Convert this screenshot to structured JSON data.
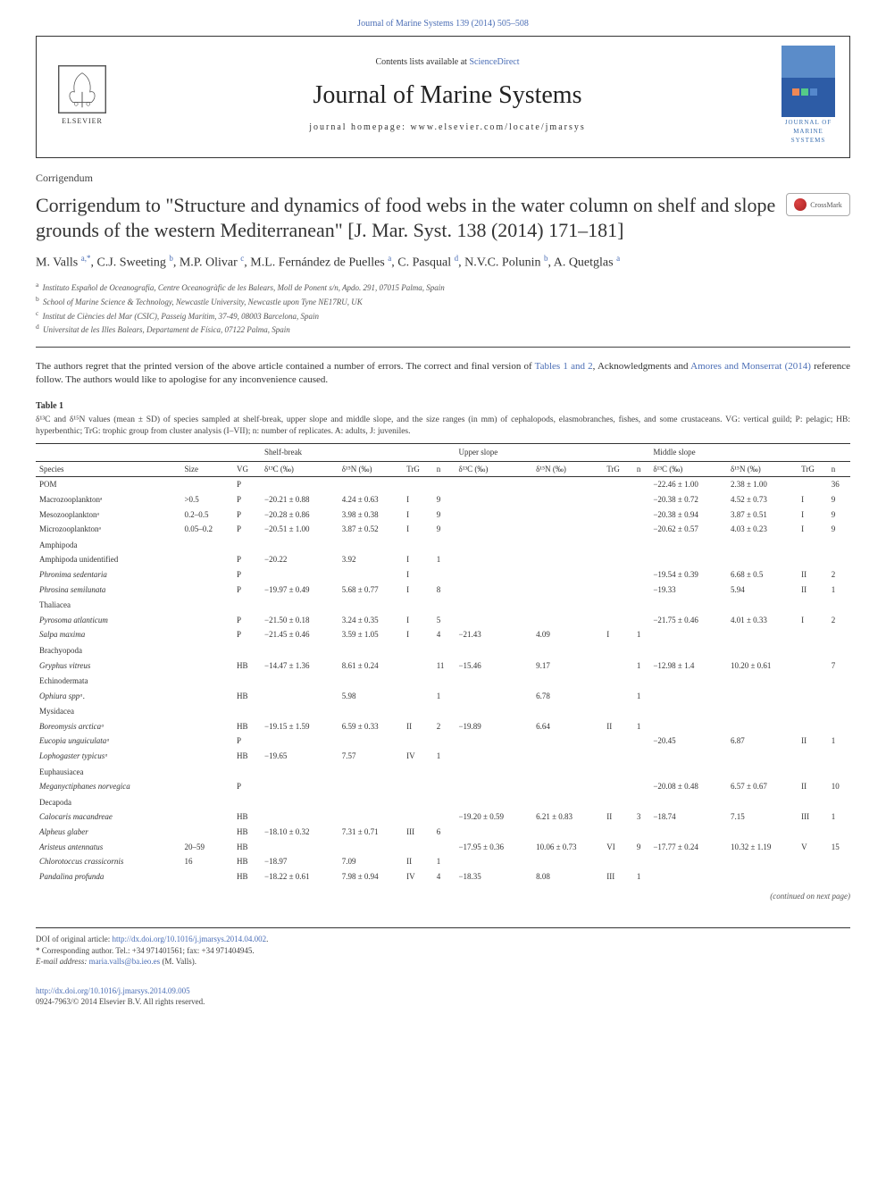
{
  "journal_ref": "Journal of Marine Systems 139 (2014) 505–508",
  "header": {
    "contents_prefix": "Contents lists available at ",
    "contents_link": "ScienceDirect",
    "journal_title": "Journal of Marine Systems",
    "homepage_prefix": "journal homepage: ",
    "homepage": "www.elsevier.com/locate/jmarsys",
    "elsevier_label": "ELSEVIER",
    "cover_line1": "JOURNAL OF",
    "cover_line2": "MARINE",
    "cover_line3": "SYSTEMS"
  },
  "article_type": "Corrigendum",
  "title": "Corrigendum to \"Structure and dynamics of food webs in the water column on shelf and slope grounds of the western Mediterranean\" [J. Mar. Syst. 138 (2014) 171–181]",
  "crossmark": "CrossMark",
  "authors_html": "M. Valls <sup>a,*</sup>, C.J. Sweeting <sup>b</sup>, M.P. Olivar <sup>c</sup>, M.L. Fernández de Puelles <sup>a</sup>, C. Pasqual <sup>d</sup>, N.V.C. Polunin <sup>b</sup>, A. Quetglas <sup>a</sup>",
  "affiliations": [
    {
      "sup": "a",
      "text": "Instituto Español de Oceanografía, Centre Oceanogràfic de les Balears, Moll de Ponent s/n, Apdo. 291, 07015 Palma, Spain"
    },
    {
      "sup": "b",
      "text": "School of Marine Science & Technology, Newcastle University, Newcastle upon Tyne NE17RU, UK"
    },
    {
      "sup": "c",
      "text": "Institut de Ciències del Mar (CSIC), Passeig Marítim, 37-49, 08003 Barcelona, Spain"
    },
    {
      "sup": "d",
      "text": "Universitat de les Illes Balears, Departament de Física, 07122 Palma, Spain"
    }
  ],
  "body_para": "The authors regret that the printed version of the above article contained a number of errors. The correct and final version of Tables 1 and 2, Acknowledgments and Amores and Monserrat (2014) reference follow. The authors would like to apologise for any inconvenience caused.",
  "table": {
    "label": "Table 1",
    "caption": "δ¹³C and δ¹⁵N values (mean ± SD) of species sampled at shelf-break, upper slope and middle slope, and the size ranges (in mm) of cephalopods, elasmobranches, fishes, and some crustaceans. VG: vertical guild; P: pelagic; HB: hyperbenthic; TrG: trophic group from cluster analysis (I–VII); n: number of replicates. A: adults, J: juveniles.",
    "location_headers": [
      "Shelf-break",
      "Upper slope",
      "Middle slope"
    ],
    "sub_headers": [
      "Species",
      "Size",
      "VG",
      "δ¹³C (‰)",
      "δ¹⁵N (‰)",
      "TrG",
      "n",
      "δ¹³C (‰)",
      "δ¹⁵N (‰)",
      "TrG",
      "n",
      "δ¹³C (‰)",
      "δ¹⁵N (‰)",
      "TrG",
      "n"
    ],
    "rows": [
      {
        "type": "data",
        "indent": 0,
        "sp": "POM",
        "it": false,
        "size": "",
        "vg": "P",
        "sb": [
          "",
          "",
          "",
          ""
        ],
        "us": [
          "",
          "",
          "",
          ""
        ],
        "ms": [
          "−22.46 ± 1.00",
          "2.38 ± 1.00",
          "",
          "36"
        ]
      },
      {
        "type": "data",
        "indent": 0,
        "sp": "Macrozooplanktonᵃ",
        "it": false,
        "size": ">0.5",
        "vg": "P",
        "sb": [
          "−20.21 ± 0.88",
          "4.24 ± 0.63",
          "I",
          "9"
        ],
        "us": [
          "",
          "",
          "",
          ""
        ],
        "ms": [
          "−20.38 ± 0.72",
          "4.52 ± 0.73",
          "I",
          "9"
        ]
      },
      {
        "type": "data",
        "indent": 0,
        "sp": "Mesozooplanktonᵃ",
        "it": false,
        "size": "0.2–0.5",
        "vg": "P",
        "sb": [
          "−20.28 ± 0.86",
          "3.98 ± 0.38",
          "I",
          "9"
        ],
        "us": [
          "",
          "",
          "",
          ""
        ],
        "ms": [
          "−20.38 ± 0.94",
          "3.87 ± 0.51",
          "I",
          "9"
        ]
      },
      {
        "type": "data",
        "indent": 0,
        "sp": "Microzooplanktonᵃ",
        "it": false,
        "size": "0.05–0.2",
        "vg": "P",
        "sb": [
          "−20.51 ± 1.00",
          "3.87 ± 0.52",
          "I",
          "9"
        ],
        "us": [
          "",
          "",
          "",
          ""
        ],
        "ms": [
          "−20.62 ± 0.57",
          "4.03 ± 0.23",
          "I",
          "9"
        ]
      },
      {
        "type": "group",
        "sp": "Amphipoda"
      },
      {
        "type": "data",
        "indent": 1,
        "sp": "Amphipoda unidentified",
        "it": false,
        "size": "",
        "vg": "P",
        "sb": [
          "−20.22",
          "3.92",
          "I",
          "1"
        ],
        "us": [
          "",
          "",
          "",
          ""
        ],
        "ms": [
          "",
          "",
          "",
          ""
        ]
      },
      {
        "type": "data",
        "indent": 1,
        "sp": "Phronima sedentaria",
        "it": true,
        "size": "",
        "vg": "P",
        "sb": [
          "",
          "",
          "I",
          ""
        ],
        "us": [
          "",
          "",
          "",
          ""
        ],
        "ms": [
          "−19.54 ± 0.39",
          "6.68 ± 0.5",
          "II",
          "2"
        ]
      },
      {
        "type": "data",
        "indent": 1,
        "sp": "Phrosina semilunata",
        "it": true,
        "size": "",
        "vg": "P",
        "sb": [
          "−19.97 ± 0.49",
          "5.68 ± 0.77",
          "I",
          "8"
        ],
        "us": [
          "",
          "",
          "",
          ""
        ],
        "ms": [
          "−19.33",
          "5.94",
          "II",
          "1"
        ]
      },
      {
        "type": "group",
        "sp": "Thaliacea"
      },
      {
        "type": "data",
        "indent": 1,
        "sp": "Pyrosoma atlanticum",
        "it": true,
        "size": "",
        "vg": "P",
        "sb": [
          "−21.50 ± 0.18",
          "3.24 ± 0.35",
          "I",
          "5"
        ],
        "us": [
          "",
          "",
          "",
          ""
        ],
        "ms": [
          "−21.75 ± 0.46",
          "4.01 ± 0.33",
          "I",
          "2"
        ]
      },
      {
        "type": "data",
        "indent": 1,
        "sp": "Salpa maxima",
        "it": true,
        "size": "",
        "vg": "P",
        "sb": [
          "−21.45 ± 0.46",
          "3.59 ± 1.05",
          "I",
          "4"
        ],
        "us": [
          "−21.43",
          "4.09",
          "I",
          "1"
        ],
        "ms": [
          "",
          "",
          "",
          ""
        ]
      },
      {
        "type": "group",
        "sp": "Brachyopoda"
      },
      {
        "type": "data",
        "indent": 1,
        "sp": "Gryphus vitreus",
        "it": true,
        "size": "",
        "vg": "HB",
        "sb": [
          "−14.47 ± 1.36",
          "8.61 ± 0.24",
          "",
          "11"
        ],
        "us": [
          "−15.46",
          "9.17",
          "",
          "1"
        ],
        "ms": [
          "−12.98 ± 1.4",
          "10.20 ± 0.61",
          "",
          "7"
        ]
      },
      {
        "type": "group",
        "sp": "Echinodermata"
      },
      {
        "type": "data",
        "indent": 1,
        "sp": "Ophiura sppᵃ.",
        "it": true,
        "size": "",
        "vg": "HB",
        "sb": [
          "",
          "5.98",
          "",
          "1"
        ],
        "us": [
          "",
          "6.78",
          "",
          "1"
        ],
        "ms": [
          "",
          "",
          "",
          ""
        ]
      },
      {
        "type": "group",
        "sp": "Mysidacea"
      },
      {
        "type": "data",
        "indent": 1,
        "sp": "Boreomysis arcticaᵃ",
        "it": true,
        "size": "",
        "vg": "HB",
        "sb": [
          "−19.15 ± 1.59",
          "6.59 ± 0.33",
          "II",
          "2"
        ],
        "us": [
          "−19.89",
          "6.64",
          "II",
          "1"
        ],
        "ms": [
          "",
          "",
          "",
          ""
        ]
      },
      {
        "type": "data",
        "indent": 1,
        "sp": "Eucopia unguiculataᵃ",
        "it": true,
        "size": "",
        "vg": "P",
        "sb": [
          "",
          "",
          "",
          ""
        ],
        "us": [
          "",
          "",
          "",
          ""
        ],
        "ms": [
          "−20.45",
          "6.87",
          "II",
          "1"
        ]
      },
      {
        "type": "data",
        "indent": 1,
        "sp": "Lophogaster typicusᵃ",
        "it": true,
        "size": "",
        "vg": "HB",
        "sb": [
          "−19.65",
          "7.57",
          "IV",
          "1"
        ],
        "us": [
          "",
          "",
          "",
          ""
        ],
        "ms": [
          "",
          "",
          "",
          ""
        ]
      },
      {
        "type": "group",
        "sp": "Euphausiacea"
      },
      {
        "type": "data",
        "indent": 1,
        "sp": "Meganyctiphanes norvegica",
        "it": true,
        "size": "",
        "vg": "P",
        "sb": [
          "",
          "",
          "",
          ""
        ],
        "us": [
          "",
          "",
          "",
          ""
        ],
        "ms": [
          "−20.08 ± 0.48",
          "6.57 ± 0.67",
          "II",
          "10"
        ]
      },
      {
        "type": "group",
        "sp": "Decapoda"
      },
      {
        "type": "data",
        "indent": 1,
        "sp": "Calocaris macandreae",
        "it": true,
        "size": "",
        "vg": "HB",
        "sb": [
          "",
          "",
          "",
          ""
        ],
        "us": [
          "−19.20 ± 0.59",
          "6.21 ± 0.83",
          "II",
          "3"
        ],
        "ms": [
          "−18.74",
          "7.15",
          "III",
          "1"
        ]
      },
      {
        "type": "data",
        "indent": 1,
        "sp": "Alpheus glaber",
        "it": true,
        "size": "",
        "vg": "HB",
        "sb": [
          "−18.10 ± 0.32",
          "7.31 ± 0.71",
          "III",
          "6"
        ],
        "us": [
          "",
          "",
          "",
          ""
        ],
        "ms": [
          "",
          "",
          "",
          ""
        ]
      },
      {
        "type": "data",
        "indent": 1,
        "sp": "Aristeus antennatus",
        "it": true,
        "size": "20–59",
        "vg": "HB",
        "sb": [
          "",
          "",
          "",
          ""
        ],
        "us": [
          "−17.95 ± 0.36",
          "10.06 ± 0.73",
          "VI",
          "9"
        ],
        "ms": [
          "−17.77 ± 0.24",
          "10.32 ± 1.19",
          "V",
          "15"
        ]
      },
      {
        "type": "data",
        "indent": 1,
        "sp": "Chlorotoccus crassicornis",
        "it": true,
        "size": "16",
        "vg": "HB",
        "sb": [
          "−18.97",
          "7.09",
          "II",
          "1"
        ],
        "us": [
          "",
          "",
          "",
          ""
        ],
        "ms": [
          "",
          "",
          "",
          ""
        ]
      },
      {
        "type": "data",
        "indent": 1,
        "sp": "Pandalina profunda",
        "it": true,
        "size": "",
        "vg": "HB",
        "sb": [
          "−18.22 ± 0.61",
          "7.98 ± 0.94",
          "IV",
          "4"
        ],
        "us": [
          "−18.35",
          "8.08",
          "III",
          "1"
        ],
        "ms": [
          "",
          "",
          "",
          ""
        ]
      }
    ],
    "continued": "(continued on next page)"
  },
  "footnotes": {
    "doi_label": "DOI of original article: ",
    "doi": "http://dx.doi.org/10.1016/j.jmarsys.2014.04.002",
    "corresponding": "Corresponding author. Tel.: +34 971401561; fax: +34 971404945.",
    "email_label": "E-mail address: ",
    "email": "maria.valls@ba.ieo.es",
    "email_suffix": " (M. Valls)."
  },
  "footer": {
    "doi": "http://dx.doi.org/10.1016/j.jmarsys.2014.09.005",
    "copyright": "0924-7963/© 2014 Elsevier B.V. All rights reserved."
  },
  "colors": {
    "link": "#4a6db5",
    "text": "#333333",
    "rule": "#333333",
    "bg": "#ffffff"
  }
}
